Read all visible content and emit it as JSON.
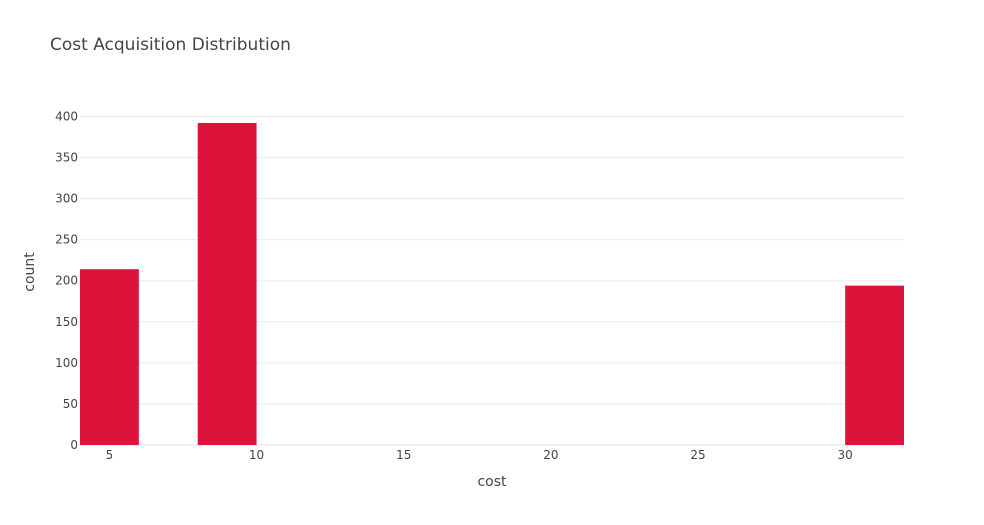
{
  "chart_data": {
    "type": "bar",
    "title": "Cost Acquisition Distribution",
    "xlabel": "cost",
    "ylabel": "count",
    "bins": [
      {
        "x0": 4,
        "x1": 6,
        "value": 214
      },
      {
        "x0": 6,
        "x1": 8,
        "value": 0
      },
      {
        "x0": 8,
        "x1": 10,
        "value": 392
      },
      {
        "x0": 10,
        "x1": 12,
        "value": 0
      },
      {
        "x0": 12,
        "x1": 14,
        "value": 0
      },
      {
        "x0": 14,
        "x1": 16,
        "value": 0
      },
      {
        "x0": 16,
        "x1": 18,
        "value": 0
      },
      {
        "x0": 18,
        "x1": 20,
        "value": 0
      },
      {
        "x0": 20,
        "x1": 22,
        "value": 0
      },
      {
        "x0": 22,
        "x1": 24,
        "value": 0
      },
      {
        "x0": 24,
        "x1": 26,
        "value": 0
      },
      {
        "x0": 26,
        "x1": 28,
        "value": 0
      },
      {
        "x0": 28,
        "x1": 30,
        "value": 0
      },
      {
        "x0": 30,
        "x1": 32,
        "value": 194
      }
    ],
    "xlim": [
      4,
      32
    ],
    "ylim": [
      0,
      420
    ],
    "xticks": [
      5,
      10,
      15,
      20,
      25,
      30
    ],
    "yticks": [
      0,
      50,
      100,
      150,
      200,
      250,
      300,
      350,
      400
    ],
    "grid": true,
    "bar_color": "#dc143c"
  }
}
